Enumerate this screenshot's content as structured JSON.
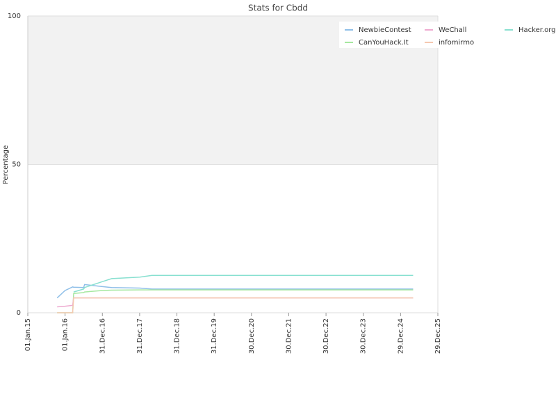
{
  "chart_data": {
    "type": "line",
    "title": "Stats for Cbdd",
    "y_label": "Percentage",
    "x": [
      "2015-10-15",
      "2016-01-01",
      "2016-03-15",
      "2016-03-25",
      "2016-07-01",
      "2016-07-10",
      "2017-01-01",
      "2017-04-01",
      "2018-01-01",
      "2018-05-01",
      "2019-01-01",
      "2025-05-01"
    ],
    "series": [
      {
        "name": "NewbieContest",
        "color": "#8fbfe8",
        "values": [
          5,
          7.5,
          8.7,
          8.6,
          8.5,
          9.5,
          8.8,
          8.5,
          8.3,
          8.0,
          8.0,
          8.0
        ]
      },
      {
        "name": "CanYouHack.It",
        "color": "#a6e8a0",
        "values": [
          0,
          0,
          0,
          6.5,
          6.8,
          7,
          7.5,
          7.6,
          7.7,
          7.7,
          7.7,
          7.7
        ]
      },
      {
        "name": "WeChall",
        "color": "#eeaad0",
        "values": [
          2,
          2.2,
          2.5,
          5,
          5,
          5,
          5,
          5,
          5,
          5,
          5,
          5
        ]
      },
      {
        "name": "infomirmo",
        "color": "#f5c8b0",
        "values": [
          0,
          0,
          0,
          5,
          5,
          5,
          5,
          5,
          5,
          5,
          5,
          5
        ]
      },
      {
        "name": "Hacker.org",
        "color": "#88e0d0",
        "values": [
          null,
          null,
          null,
          7,
          8,
          8.5,
          10.5,
          11.5,
          12,
          12.6,
          12.6,
          12.6
        ]
      }
    ],
    "ylim": [
      0,
      100
    ],
    "yticks": [
      0,
      50,
      100
    ],
    "xlim": [
      "2015-01-01",
      "2025-12-29"
    ],
    "xticks": [
      {
        "value": "2015-01-01",
        "label": "01.Jan.15"
      },
      {
        "value": "2016-01-01",
        "label": "01.Jan.16"
      },
      {
        "value": "2016-12-31",
        "label": "31.Dec.16"
      },
      {
        "value": "2017-12-31",
        "label": "31.Dec.17"
      },
      {
        "value": "2018-12-31",
        "label": "31.Dec.18"
      },
      {
        "value": "2019-12-31",
        "label": "31.Dec.19"
      },
      {
        "value": "2020-12-30",
        "label": "30.Dec.20"
      },
      {
        "value": "2021-12-30",
        "label": "30.Dec.21"
      },
      {
        "value": "2022-12-30",
        "label": "30.Dec.22"
      },
      {
        "value": "2023-12-30",
        "label": "30.Dec.23"
      },
      {
        "value": "2024-12-29",
        "label": "29.Dec.24"
      },
      {
        "value": "2025-12-29",
        "label": "29.Dec.25"
      }
    ],
    "grid": true,
    "legend": "top-right"
  }
}
